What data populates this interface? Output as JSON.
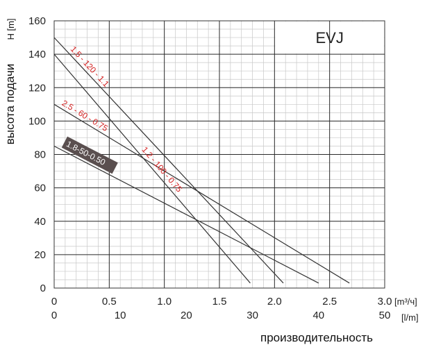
{
  "chart_data": {
    "type": "line",
    "title": "EVJ",
    "ylabel": "высота подачи",
    "ylabel_unit": "H [m]",
    "xlabel": "производительность",
    "x_unit_m3": "[m³/ч]",
    "x_unit_lmin": "[l/m]",
    "xlim": [
      0,
      3.0
    ],
    "ylim": [
      0,
      160
    ],
    "x_ticks": [
      "0",
      "0.5",
      "1.0",
      "1.5",
      "2.0",
      "2.5",
      "3.0"
    ],
    "x_ticks_lmin": [
      "0",
      "10",
      "20",
      "30",
      "40",
      "50"
    ],
    "y_ticks": [
      "0",
      "20",
      "40",
      "60",
      "80",
      "100",
      "120",
      "140",
      "160"
    ],
    "grid": true,
    "series": [
      {
        "name": "1.5 - 120 - 1.1",
        "color": "#d42020",
        "points": [
          [
            0,
            150
          ],
          [
            2.08,
            3
          ]
        ]
      },
      {
        "name": "1.2 - 100 - 0.75",
        "color": "#d42020",
        "points": [
          [
            0,
            140
          ],
          [
            1.78,
            3
          ]
        ]
      },
      {
        "name": "2.5 - 60 - 0.75",
        "color": "#d42020",
        "points": [
          [
            0,
            110
          ],
          [
            2.68,
            3
          ]
        ]
      },
      {
        "name": "1.8-50-0.50",
        "color": "#ffffff",
        "points": [
          [
            0,
            85
          ],
          [
            2.4,
            3
          ]
        ]
      }
    ]
  }
}
